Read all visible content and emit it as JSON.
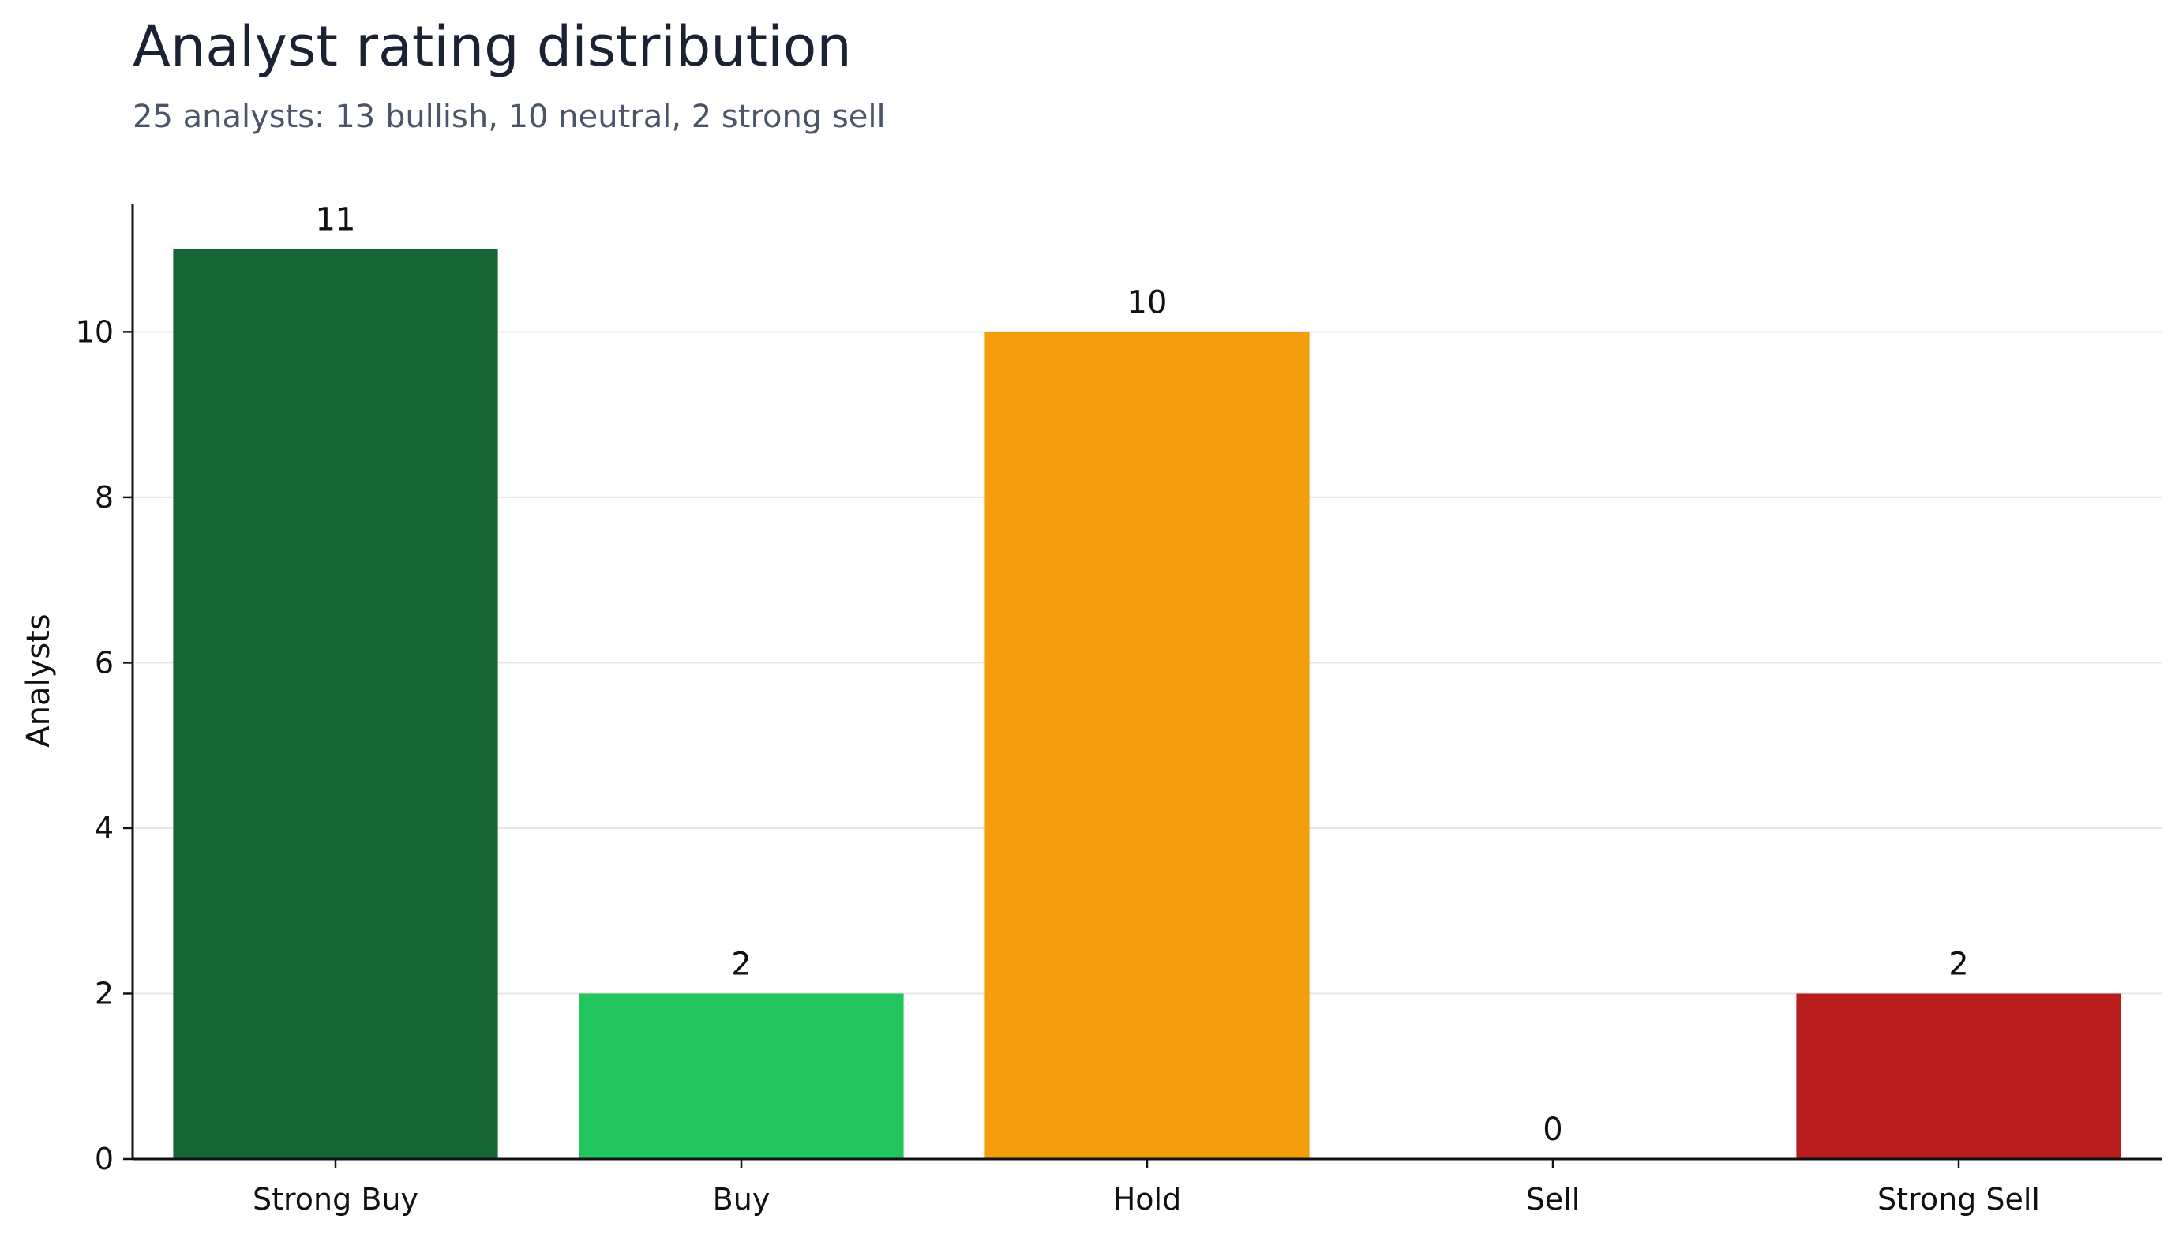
{
  "chart_data": {
    "type": "bar",
    "title": "Analyst rating distribution",
    "subtitle": "25 analysts: 13 bullish, 10 neutral, 2 strong sell",
    "xlabel": "",
    "ylabel": "Analysts",
    "categories": [
      "Strong Buy",
      "Buy",
      "Hold",
      "Sell",
      "Strong Sell"
    ],
    "values": [
      11,
      2,
      10,
      0,
      2
    ],
    "data_labels": [
      "11",
      "2",
      "10",
      "0",
      "2"
    ],
    "colors": [
      "#166534",
      "#22c55e",
      "#f59e0b",
      "#9ca3af",
      "#b91c1c"
    ],
    "ylim": [
      0,
      11.55
    ],
    "yticks": [
      0,
      2,
      4,
      6,
      8,
      10
    ],
    "grid": true,
    "legend": "none"
  }
}
